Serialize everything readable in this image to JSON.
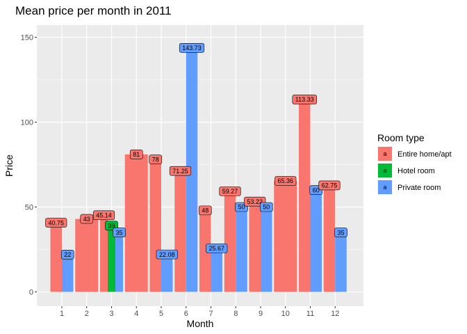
{
  "chart_data": {
    "type": "bar",
    "title": "Mean price per month in 2011",
    "xlabel": "Month",
    "ylabel": "Price",
    "categories": [
      "1",
      "2",
      "3",
      "4",
      "5",
      "6",
      "7",
      "8",
      "9",
      "10",
      "11",
      "12"
    ],
    "ylim": [
      0,
      155
    ],
    "yticks": [
      0,
      50,
      100,
      150
    ],
    "grid": true,
    "legend": {
      "title": "Room type",
      "position": "right"
    },
    "series": [
      {
        "name": "Entire home/apt",
        "color": "#F8766D",
        "values": [
          40.75,
          43,
          45.14,
          81,
          78,
          71.25,
          48,
          59.27,
          53.22,
          65.36,
          113.33,
          62.75
        ],
        "labels": [
          "40.75",
          "43",
          "45.14",
          "81",
          "78",
          "71.25",
          "48",
          "59.27",
          "53.22",
          "65.36",
          "113.33",
          "62.75"
        ]
      },
      {
        "name": "Hotel room",
        "color": "#00BA38",
        "values": [
          null,
          null,
          39,
          null,
          null,
          null,
          null,
          null,
          null,
          null,
          null,
          null
        ],
        "labels": [
          null,
          null,
          "39",
          null,
          null,
          null,
          null,
          null,
          null,
          null,
          null,
          null
        ]
      },
      {
        "name": "Private room",
        "color": "#619CFF",
        "values": [
          22,
          null,
          35,
          null,
          22.08,
          143.73,
          25.67,
          50,
          50,
          null,
          60,
          35
        ],
        "labels": [
          "22",
          null,
          "35",
          null,
          "22.08",
          "143.73",
          "25.67",
          "50",
          "50",
          null,
          "60",
          "35"
        ]
      }
    ]
  },
  "legend_key_glyph": "a"
}
